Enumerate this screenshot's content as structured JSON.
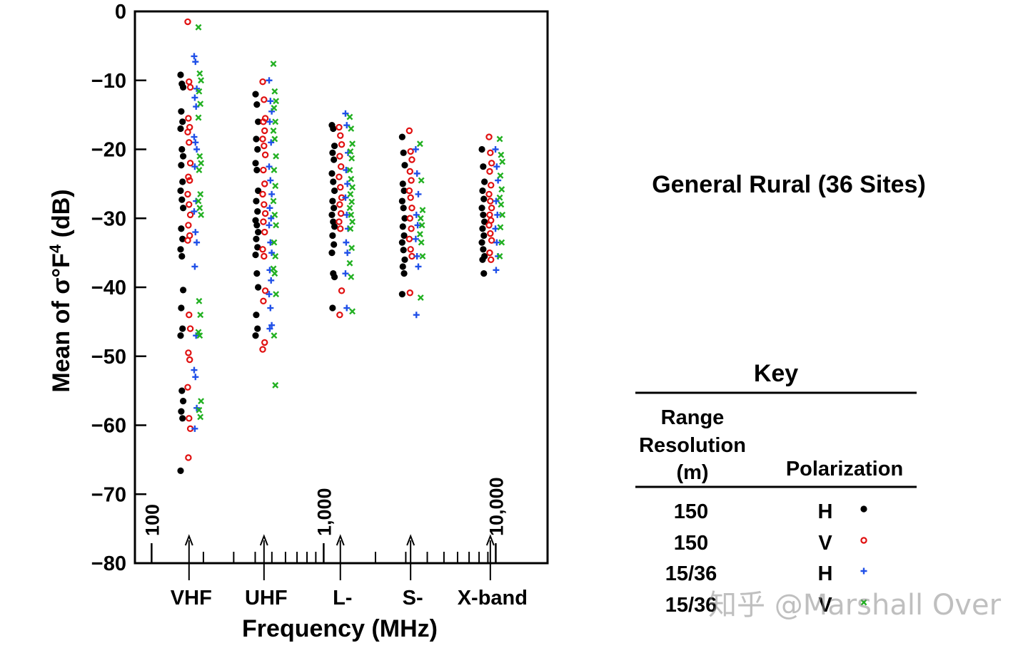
{
  "chart_data": {
    "type": "scatter",
    "ylabel_prefix": "Mean of σ°F",
    "ylabel_sup": "4",
    "ylabel_suffix": " (dB)",
    "xlabel": "Frequency (MHz)",
    "ylim": [
      -80,
      0
    ],
    "yticks": [
      "0",
      "−10",
      "−20",
      "−30",
      "−40",
      "−50",
      "−60",
      "−70",
      "−80"
    ],
    "ytick_values": [
      0,
      -10,
      -20,
      -30,
      -40,
      -50,
      -60,
      -70,
      -80
    ],
    "x_scale": "log",
    "xlim_mhz": [
      80,
      20000
    ],
    "freq_labels": [
      {
        "label": "100",
        "value": 100
      },
      {
        "label": "1,000",
        "value": 1000
      },
      {
        "label": "10,000",
        "value": 10000
      }
    ],
    "bands": [
      {
        "label": "VHF",
        "freq": 165
      },
      {
        "label": "UHF",
        "freq": 450
      },
      {
        "label": "L-",
        "freq": 1250
      },
      {
        "label": "S-",
        "freq": 3200
      },
      {
        "label": "X-band",
        "freq": 9300
      }
    ],
    "title": "General Rural (36 Sites)",
    "series": [
      {
        "key": "150 m H",
        "marker": "dot",
        "color": "#000000",
        "points": [
          {
            "band": "VHF",
            "values": [
              -9.2,
              -10.5,
              -11,
              -14.5,
              -16,
              -17,
              -20,
              -21,
              -22.3,
              -24.7,
              -26,
              -27.3,
              -28.5,
              -31.5,
              -33,
              -34.5,
              -35.5,
              -40.4,
              -43,
              -46,
              -47,
              -55,
              -56.5,
              -58,
              -59,
              -66.6
            ]
          },
          {
            "band": "UHF",
            "values": [
              -12,
              -13.5,
              -16,
              -18.5,
              -20,
              -22,
              -23,
              -26,
              -27.5,
              -29,
              -30.3,
              -31,
              -32,
              -33,
              -34.2,
              -35.3,
              -38,
              -40,
              -44,
              -46,
              -47
            ]
          },
          {
            "band": "L-",
            "values": [
              -16.5,
              -17,
              -19.5,
              -20.5,
              -21.5,
              -23.5,
              -24.7,
              -26,
              -27.5,
              -28.5,
              -29.5,
              -30.5,
              -31.2,
              -32.5,
              -33.8,
              -35,
              -38,
              -38.5,
              -43
            ]
          },
          {
            "band": "S-",
            "values": [
              -18.2,
              -20.5,
              -22.3,
              -25,
              -26,
              -27.5,
              -28.5,
              -30,
              -31.2,
              -32.5,
              -33.5,
              -34.6,
              -36,
              -37,
              -38,
              -41
            ]
          },
          {
            "band": "X-band",
            "values": [
              -20,
              -22.5,
              -24.7,
              -26,
              -27.2,
              -28.5,
              -29.5,
              -30.5,
              -31.5,
              -32.5,
              -33.5,
              -34.5,
              -35.5,
              -36,
              -38
            ]
          }
        ]
      },
      {
        "key": "150 m V",
        "marker": "ring",
        "color": "#e01010",
        "points": [
          {
            "band": "VHF",
            "values": [
              -1.5,
              -10.2,
              -11,
              -15.5,
              -16.8,
              -17.5,
              -19,
              -22,
              -24,
              -24.5,
              -26.5,
              -28,
              -29.5,
              -31,
              -32.5,
              -33.2,
              -44,
              -46,
              -49.5,
              -50.5,
              -54.5,
              -59,
              -60.5,
              -64.7
            ]
          },
          {
            "band": "UHF",
            "values": [
              -10.2,
              -12.8,
              -15.5,
              -16,
              -17.3,
              -18.5,
              -19.5,
              -20.8,
              -23,
              -25,
              -26.5,
              -28,
              -29.3,
              -30.5,
              -32,
              -34.5,
              -35.5,
              -40.5,
              -42,
              -48,
              -49
            ]
          },
          {
            "band": "L-",
            "values": [
              -16.8,
              -18,
              -19.3,
              -21,
              -22.5,
              -24,
              -25.5,
              -27,
              -28,
              -29.3,
              -30.5,
              -31.5,
              -40.5,
              -44
            ]
          },
          {
            "band": "S-",
            "values": [
              -17.3,
              -20.3,
              -21.5,
              -23.2,
              -24.5,
              -26,
              -27,
              -28.5,
              -30,
              -31.5,
              -33,
              -34.5,
              -35.5,
              -40.8
            ]
          },
          {
            "band": "X-band",
            "values": [
              -18.2,
              -20.5,
              -22,
              -23.2,
              -25.2,
              -26.5,
              -27.5,
              -28.5,
              -29.5,
              -30.3,
              -31,
              -32.2,
              -33.2,
              -35,
              -36
            ]
          }
        ]
      },
      {
        "key": "15/36 m H",
        "marker": "plus",
        "color": "#2050e8",
        "points": [
          {
            "band": "VHF",
            "values": [
              -6.5,
              -7.3,
              -11.2,
              -12.5,
              -13.8,
              -18.2,
              -19,
              -20,
              -22.5,
              -27.5,
              -29,
              -32,
              -33.5,
              -37,
              -47,
              -52,
              -53,
              -57.5,
              -60.5
            ]
          },
          {
            "band": "UHF",
            "values": [
              -10,
              -13,
              -14.5,
              -16,
              -19,
              -22.5,
              -24.5,
              -26.5,
              -28.5,
              -30,
              -31,
              -33.5,
              -35,
              -37.5,
              -39,
              -41,
              -43,
              -45.5,
              -46
            ]
          },
          {
            "band": "L-",
            "values": [
              -14.8,
              -16.5,
              -20.5,
              -23,
              -25,
              -27,
              -29.5,
              -31.5,
              -33.5,
              -35,
              -38,
              -43
            ]
          },
          {
            "band": "S-",
            "values": [
              -20,
              -23.5,
              -26.5,
              -29.5,
              -31,
              -33,
              -35.5,
              -37,
              -44
            ]
          },
          {
            "band": "X-band",
            "values": [
              -20,
              -22.5,
              -24.5,
              -27.5,
              -29.5,
              -31.5,
              -33.5,
              -35.5,
              -37.5
            ]
          }
        ]
      },
      {
        "key": "15/36 m V",
        "marker": "cross",
        "color": "#22b022",
        "points": [
          {
            "band": "VHF",
            "values": [
              -2.3,
              -9,
              -10,
              -11.6,
              -13.4,
              -15.4,
              -21,
              -22,
              -23,
              -26.5,
              -27.5,
              -28.5,
              -29.5,
              -42,
              -44,
              -46.5,
              -47,
              -56.5,
              -57.8,
              -58.8
            ]
          },
          {
            "band": "UHF",
            "values": [
              -7.6,
              -11.6,
              -13,
              -14,
              -16,
              -17.3,
              -18.5,
              -21,
              -23,
              -25.3,
              -27.5,
              -29.5,
              -31,
              -33.5,
              -35.5,
              -37.3,
              -38,
              -41,
              -47,
              -54.2
            ]
          },
          {
            "band": "L-",
            "values": [
              -15.3,
              -17,
              -19.2,
              -20.3,
              -21.3,
              -23,
              -24.3,
              -25.5,
              -26.5,
              -27.6,
              -28.5,
              -29.5,
              -30.5,
              -31.5,
              -34.3,
              -36.5,
              -38.5,
              -43.5
            ]
          },
          {
            "band": "S-",
            "values": [
              -19.2,
              -24.5,
              -28.8,
              -30,
              -31,
              -32.3,
              -33.5,
              -35.5,
              -41.5
            ]
          },
          {
            "band": "X-band",
            "values": [
              -18.5,
              -20.8,
              -21.8,
              -23.8,
              -25.8,
              -27,
              -28,
              -29.5,
              -31.3,
              -33.5,
              -35.5
            ]
          }
        ]
      }
    ]
  },
  "key": {
    "title": "Key",
    "col_range_line1": "Range",
    "col_range_line2": "Resolution",
    "col_range_line3": "(m)",
    "col_pol": "Polarization",
    "rows": [
      {
        "range": "150",
        "pol": "H"
      },
      {
        "range": "150",
        "pol": "V"
      },
      {
        "range": "15/36",
        "pol": "H"
      },
      {
        "range": "15/36",
        "pol": "V"
      }
    ]
  },
  "watermark": "知乎 @Marshall Over"
}
